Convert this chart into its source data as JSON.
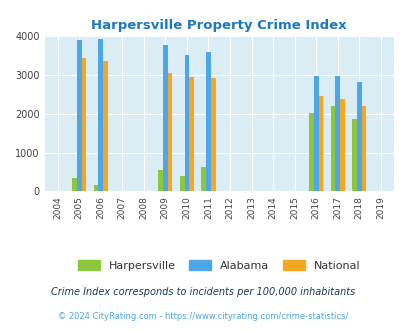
{
  "title": "Harpersville Property Crime Index",
  "title_color": "#1a7abf",
  "years": [
    2004,
    2005,
    2006,
    2007,
    2008,
    2009,
    2010,
    2011,
    2012,
    2013,
    2014,
    2015,
    2016,
    2017,
    2018,
    2019
  ],
  "harpersville": {
    "2005": 340,
    "2006": 160,
    "2009": 560,
    "2010": 390,
    "2011": 630,
    "2016": 2020,
    "2017": 2190,
    "2018": 1870
  },
  "alabama": {
    "2005": 3900,
    "2006": 3940,
    "2009": 3780,
    "2010": 3520,
    "2011": 3600,
    "2016": 2970,
    "2017": 2970,
    "2018": 2810
  },
  "national": {
    "2005": 3440,
    "2006": 3360,
    "2009": 3050,
    "2010": 2950,
    "2011": 2920,
    "2016": 2460,
    "2017": 2390,
    "2018": 2190
  },
  "color_harpersville": "#8dc63f",
  "color_alabama": "#4da6e8",
  "color_national": "#f5a623",
  "bg_color": "#daedf5",
  "ylim": [
    0,
    4000
  ],
  "yticks": [
    0,
    1000,
    2000,
    3000,
    4000
  ],
  "footnote1": "Crime Index corresponds to incidents per 100,000 inhabitants",
  "footnote2": "© 2024 CityRating.com - https://www.cityrating.com/crime-statistics/",
  "footnote1_color": "#1a3a5c",
  "footnote2_color": "#4da6e8",
  "bar_width": 0.22
}
